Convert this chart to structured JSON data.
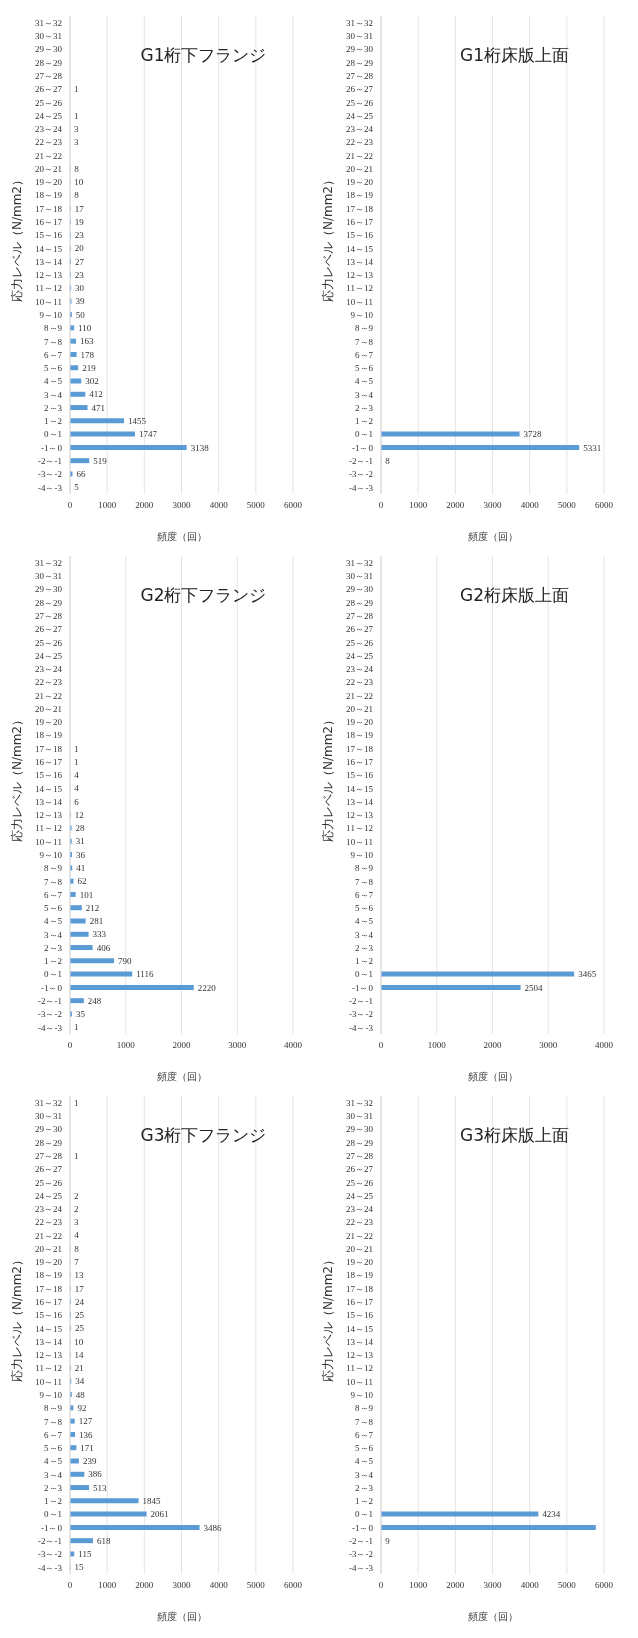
{
  "chart_data": [
    {
      "type": "bar",
      "orientation": "horizontal",
      "title": "G1桁下フランジ",
      "xlabel": "頻度（回）",
      "ylabel": "応力レベル（N/mm2）",
      "color": "#5b9bd5",
      "grid": "x",
      "xlim": [
        0,
        6000
      ],
      "xticks": [
        0,
        1000,
        2000,
        3000,
        4000,
        5000,
        6000
      ],
      "data_labels": true,
      "categories": [
        "31～32",
        "30～31",
        "29～30",
        "28～29",
        "27～28",
        "26～27",
        "25～26",
        "24～25",
        "23～24",
        "22～23",
        "21～22",
        "20～21",
        "19～20",
        "18～19",
        "17～18",
        "16～17",
        "15～16",
        "14～15",
        "13～14",
        "12～13",
        "11～12",
        "10～11",
        "9～10",
        "8～9",
        "7～8",
        "6～7",
        "5～6",
        "4～5",
        "3～4",
        "2～3",
        "1～2",
        "0～1",
        "-1～0",
        "-2～-1",
        "-3～-2",
        "-4～-3"
      ],
      "values": [
        null,
        null,
        null,
        null,
        null,
        1,
        null,
        1,
        3,
        3,
        null,
        8,
        10,
        8,
        17,
        19,
        23,
        20,
        27,
        23,
        30,
        39,
        50,
        110,
        163,
        178,
        219,
        302,
        412,
        471,
        1455,
        1747,
        3138,
        519,
        66,
        5
      ]
    },
    {
      "type": "bar",
      "orientation": "horizontal",
      "title": "G1桁床版上面",
      "xlabel": "頻度（回）",
      "ylabel": "応力レベル（N/mm2）",
      "color": "#5b9bd5",
      "grid": "x",
      "xlim": [
        0,
        6000
      ],
      "xticks": [
        0,
        1000,
        2000,
        3000,
        4000,
        5000,
        6000
      ],
      "data_labels": true,
      "categories": [
        "31～32",
        "30～31",
        "29～30",
        "28～29",
        "27～28",
        "26～27",
        "25～26",
        "24～25",
        "23～24",
        "22～23",
        "21～22",
        "20～21",
        "19～20",
        "18～19",
        "17～18",
        "16～17",
        "15～16",
        "14～15",
        "13～14",
        "12～13",
        "11～12",
        "10～11",
        "9～10",
        "8～9",
        "7～8",
        "6～7",
        "5～6",
        "4～5",
        "3～4",
        "2～3",
        "1～2",
        "0～1",
        "-1～0",
        "-2～-1",
        "-3～-2",
        "-4～-3"
      ],
      "values": [
        null,
        null,
        null,
        null,
        null,
        null,
        null,
        null,
        null,
        null,
        null,
        null,
        null,
        null,
        null,
        null,
        null,
        null,
        null,
        null,
        null,
        null,
        null,
        null,
        null,
        null,
        null,
        null,
        null,
        null,
        null,
        3728,
        5331,
        8,
        null,
        null
      ]
    },
    {
      "type": "bar",
      "orientation": "horizontal",
      "title": "G2桁下フランジ",
      "xlabel": "頻度（回）",
      "ylabel": "応力レベル（N/mm2）",
      "color": "#5b9bd5",
      "grid": "x",
      "xlim": [
        0,
        4000
      ],
      "xticks": [
        0,
        1000,
        2000,
        3000,
        4000
      ],
      "data_labels": true,
      "categories": [
        "31～32",
        "30～31",
        "29～30",
        "28～29",
        "27～28",
        "26～27",
        "25～26",
        "24～25",
        "23～24",
        "22～23",
        "21～22",
        "20～21",
        "19～20",
        "18～19",
        "17～18",
        "16～17",
        "15～16",
        "14～15",
        "13～14",
        "12～13",
        "11～12",
        "10～11",
        "9～10",
        "8～9",
        "7～8",
        "6～7",
        "5～6",
        "4～5",
        "3～4",
        "2～3",
        "1～2",
        "0～1",
        "-1～0",
        "-2～-1",
        "-3～-2",
        "-4～-3"
      ],
      "values": [
        null,
        null,
        null,
        null,
        null,
        null,
        null,
        null,
        null,
        null,
        null,
        null,
        null,
        null,
        1,
        1,
        4,
        4,
        6,
        12,
        28,
        31,
        36,
        41,
        62,
        101,
        212,
        281,
        333,
        406,
        790,
        1116,
        2220,
        248,
        35,
        1
      ]
    },
    {
      "type": "bar",
      "orientation": "horizontal",
      "title": "G2桁床版上面",
      "xlabel": "頻度（回）",
      "ylabel": "応力レベル（N/mm2）",
      "color": "#5b9bd5",
      "grid": "x",
      "xlim": [
        0,
        4000
      ],
      "xticks": [
        0,
        1000,
        2000,
        3000,
        4000
      ],
      "data_labels": true,
      "categories": [
        "31～32",
        "30～31",
        "29～30",
        "28～29",
        "27～28",
        "26～27",
        "25～26",
        "24～25",
        "23～24",
        "22～23",
        "21～22",
        "20～21",
        "19～20",
        "18～19",
        "17～18",
        "16～17",
        "15～16",
        "14～15",
        "13～14",
        "12～13",
        "11～12",
        "10～11",
        "9～10",
        "8～9",
        "7～8",
        "6～7",
        "5～6",
        "4～5",
        "3～4",
        "2～3",
        "1～2",
        "0～1",
        "-1～0",
        "-2～-1",
        "-3～-2",
        "-4～-3"
      ],
      "values": [
        null,
        null,
        null,
        null,
        null,
        null,
        null,
        null,
        null,
        null,
        null,
        null,
        null,
        null,
        null,
        null,
        null,
        null,
        null,
        null,
        null,
        null,
        null,
        null,
        null,
        null,
        null,
        null,
        null,
        null,
        null,
        3465,
        2504,
        null,
        null,
        null
      ]
    },
    {
      "type": "bar",
      "orientation": "horizontal",
      "title": "G3桁下フランジ",
      "xlabel": "頻度（回）",
      "ylabel": "応力レベル（N/mm2）",
      "color": "#5b9bd5",
      "grid": "x",
      "xlim": [
        0,
        6000
      ],
      "xticks": [
        0,
        1000,
        2000,
        3000,
        4000,
        5000,
        6000
      ],
      "data_labels": true,
      "categories": [
        "31～32",
        "30～31",
        "29～30",
        "28～29",
        "27～28",
        "26～27",
        "25～26",
        "24～25",
        "23～24",
        "22～23",
        "21～22",
        "20～21",
        "19～20",
        "18～19",
        "17～18",
        "16～17",
        "15～16",
        "14～15",
        "13～14",
        "12～13",
        "11～12",
        "10～11",
        "9～10",
        "8～9",
        "7～8",
        "6～7",
        "5～6",
        "4～5",
        "3～4",
        "2～3",
        "1～2",
        "0～1",
        "-1～0",
        "-2～-1",
        "-3～-2",
        "-4～-3"
      ],
      "values": [
        1,
        null,
        null,
        null,
        1,
        null,
        null,
        2,
        2,
        3,
        4,
        8,
        7,
        13,
        17,
        24,
        25,
        25,
        10,
        14,
        21,
        34,
        48,
        92,
        127,
        136,
        171,
        239,
        386,
        513,
        1845,
        2061,
        3486,
        618,
        115,
        15
      ]
    },
    {
      "type": "bar",
      "orientation": "horizontal",
      "title": "G3桁床版上面",
      "xlabel": "頻度（回）",
      "ylabel": "応力レベル（N/mm2）",
      "color": "#5b9bd5",
      "grid": "x",
      "xlim": [
        0,
        6000
      ],
      "xticks": [
        0,
        1000,
        2000,
        3000,
        4000,
        5000,
        6000
      ],
      "categories": [
        "31～32",
        "30～31",
        "29～30",
        "28～29",
        "27～28",
        "26～27",
        "25～26",
        "24～25",
        "23～24",
        "22～23",
        "21～22",
        "20～21",
        "19～20",
        "18～19",
        "17～18",
        "16～17",
        "15～16",
        "14～15",
        "13～14",
        "12～13",
        "11～12",
        "10～11",
        "9～10",
        "8～9",
        "7～8",
        "6～7",
        "5～6",
        "4～5",
        "3～4",
        "2～3",
        "1～2",
        "0～1",
        "-1～0",
        "-2～-1",
        "-3～-2",
        "-4～-3"
      ],
      "values": [
        null,
        null,
        null,
        null,
        null,
        null,
        null,
        null,
        null,
        null,
        null,
        null,
        null,
        null,
        null,
        null,
        null,
        null,
        null,
        null,
        null,
        null,
        null,
        null,
        null,
        null,
        null,
        null,
        null,
        null,
        null,
        4234,
        5780,
        9,
        null,
        null
      ],
      "value_labels": [
        null,
        null,
        null,
        null,
        null,
        null,
        null,
        null,
        null,
        null,
        null,
        null,
        null,
        null,
        null,
        null,
        null,
        null,
        null,
        null,
        null,
        null,
        null,
        null,
        null,
        null,
        null,
        null,
        null,
        null,
        null,
        "4234",
        null,
        "9",
        null,
        null
      ]
    }
  ]
}
